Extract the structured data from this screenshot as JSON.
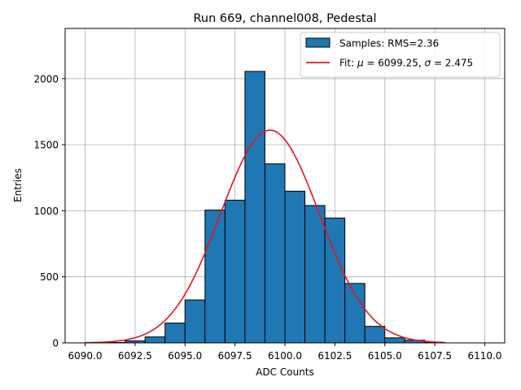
{
  "chart_data": {
    "type": "bar",
    "title": "Run 669, channel008, Pedestal",
    "xlabel": "ADC Counts",
    "ylabel": "Entries",
    "xlim": [
      6089.0,
      6111.0
    ],
    "ylim": [
      0,
      2380
    ],
    "x_ticks": [
      6090.0,
      6092.5,
      6095.0,
      6097.5,
      6100.0,
      6102.5,
      6105.0,
      6107.5,
      6110.0
    ],
    "x_tick_labels": [
      "6090.0",
      "6092.5",
      "6095.0",
      "6097.5",
      "6100.0",
      "6102.5",
      "6105.0",
      "6107.5",
      "6110.0"
    ],
    "y_ticks": [
      0,
      500,
      1000,
      1500,
      2000
    ],
    "y_tick_labels": [
      "0",
      "500",
      "1000",
      "1500",
      "2000"
    ],
    "grid": true,
    "legend_position": "top-right",
    "series": [
      {
        "name": "Samples: RMS=2.36",
        "kind": "histogram",
        "color": "#1f77b4",
        "edge_color": "#000000",
        "bins": [
          {
            "start": 6091.0,
            "end": 6092.0,
            "value": 3
          },
          {
            "start": 6092.0,
            "end": 6093.0,
            "value": 15
          },
          {
            "start": 6093.0,
            "end": 6094.0,
            "value": 45
          },
          {
            "start": 6094.0,
            "end": 6095.0,
            "value": 150
          },
          {
            "start": 6095.0,
            "end": 6096.0,
            "value": 325
          },
          {
            "start": 6096.0,
            "end": 6097.0,
            "value": 1005
          },
          {
            "start": 6097.0,
            "end": 6098.0,
            "value": 1080
          },
          {
            "start": 6098.0,
            "end": 6099.0,
            "value": 2055
          },
          {
            "start": 6099.0,
            "end": 6100.0,
            "value": 1355
          },
          {
            "start": 6100.0,
            "end": 6101.0,
            "value": 1148
          },
          {
            "start": 6101.0,
            "end": 6102.0,
            "value": 1040
          },
          {
            "start": 6102.0,
            "end": 6103.0,
            "value": 945
          },
          {
            "start": 6103.0,
            "end": 6104.0,
            "value": 450
          },
          {
            "start": 6104.0,
            "end": 6105.0,
            "value": 125
          },
          {
            "start": 6105.0,
            "end": 6106.0,
            "value": 38
          },
          {
            "start": 6106.0,
            "end": 6107.0,
            "value": 20
          },
          {
            "start": 6107.0,
            "end": 6108.0,
            "value": 3
          }
        ]
      },
      {
        "name": "Fit: μ = 6099.25, σ = 2.475",
        "kind": "line",
        "color": "#e8141c",
        "mu": 6099.25,
        "sigma": 2.475,
        "amplitude": 1610,
        "x_range": [
          6090.0,
          6108.0
        ]
      }
    ],
    "legend": {
      "hist_label": "Samples: RMS=2.36",
      "fit_label_prefix": "Fit: ",
      "fit_mu_symbol": "μ",
      "fit_mu_value": " = 6099.25, ",
      "fit_sigma_symbol": "σ",
      "fit_sigma_value": " = 2.475"
    }
  }
}
